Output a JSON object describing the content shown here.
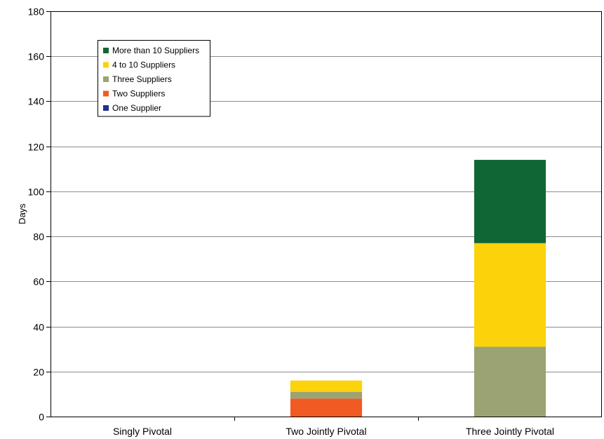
{
  "chart_data": {
    "type": "bar",
    "stacked": true,
    "categories": [
      "Singly Pivotal",
      "Two Jointly Pivotal",
      "Three Jointly Pivotal"
    ],
    "ylabel": "Days",
    "xlabel": "",
    "title": "",
    "ylim": [
      0,
      180
    ],
    "yticks": [
      0,
      20,
      40,
      60,
      80,
      100,
      120,
      140,
      160,
      180
    ],
    "grid": true,
    "legend_position": "top-left",
    "series": [
      {
        "name": "One Supplier",
        "color": "#24318f",
        "values": [
          0,
          0,
          0
        ]
      },
      {
        "name": "Two Suppliers",
        "color": "#f15a22",
        "values": [
          0,
          8,
          0
        ]
      },
      {
        "name": "Three Suppliers",
        "color": "#9ca373",
        "values": [
          0,
          3,
          31
        ]
      },
      {
        "name": "4 to 10 Suppliers",
        "color": "#fcd20a",
        "values": [
          0,
          5,
          46
        ]
      },
      {
        "name": "More than 10 Suppliers",
        "color": "#116635",
        "values": [
          0,
          0,
          37
        ]
      }
    ]
  }
}
